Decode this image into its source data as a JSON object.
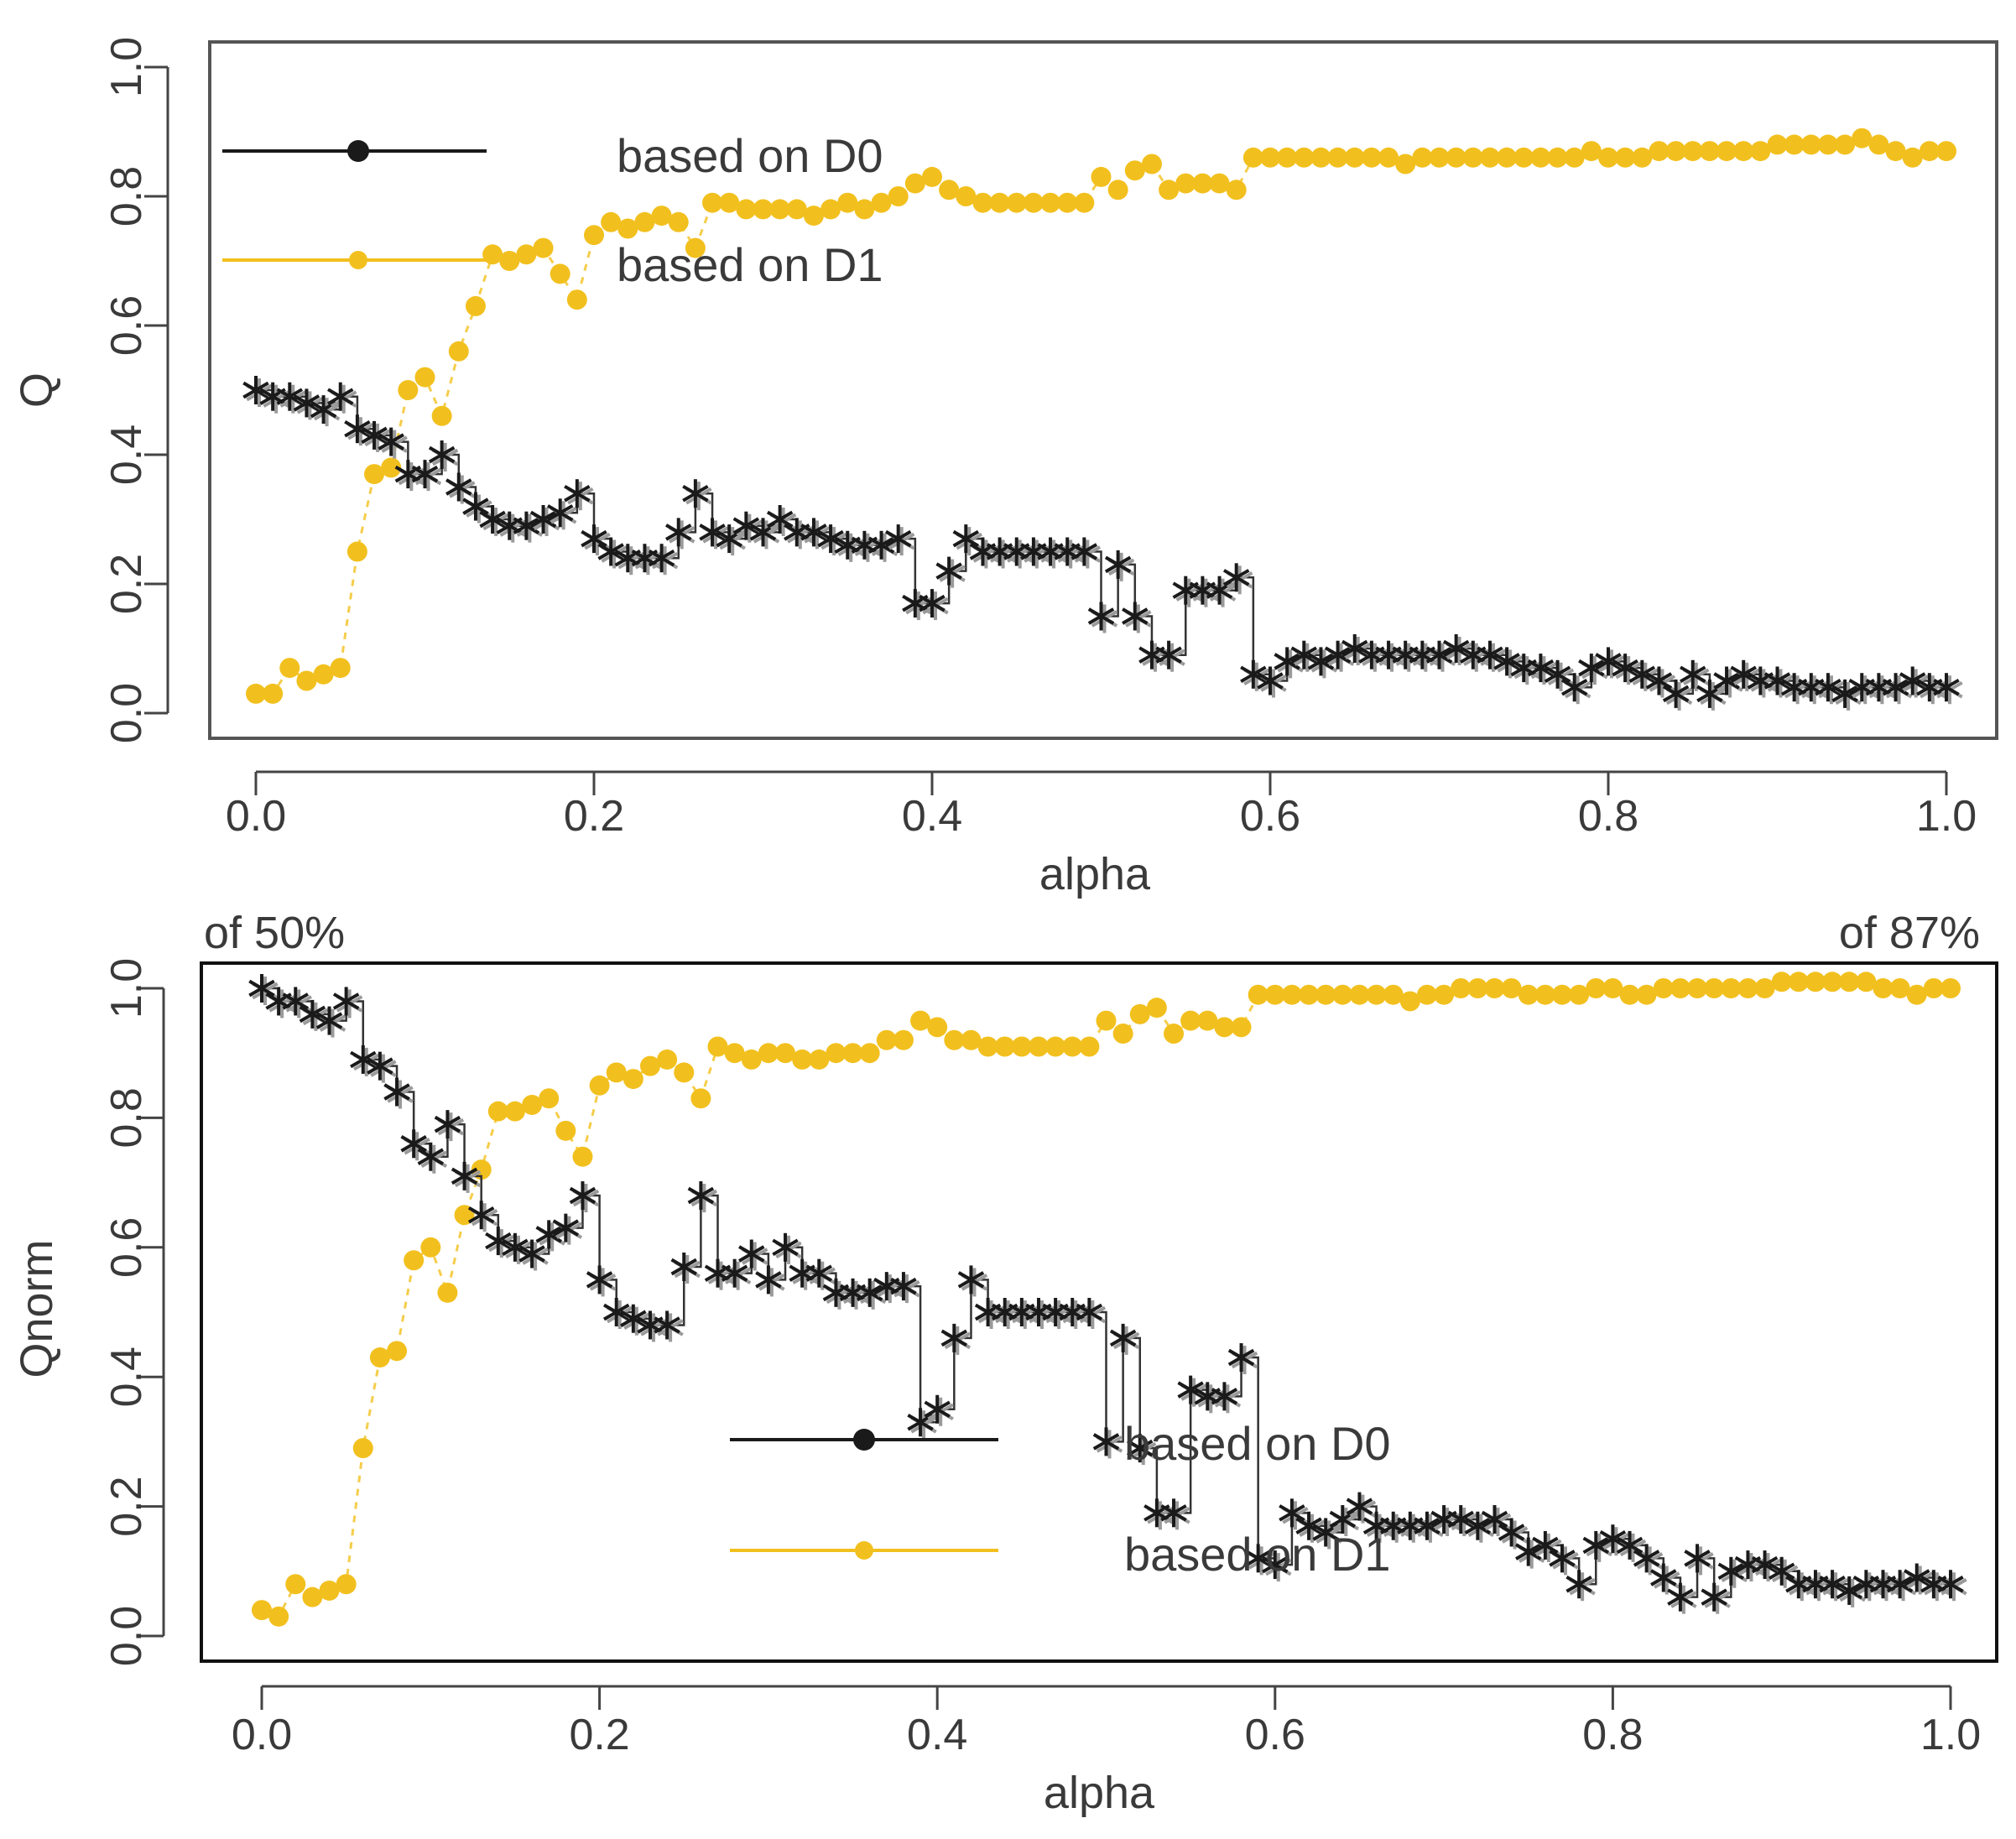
{
  "chart_data": [
    {
      "type": "scatter",
      "panel": "top",
      "xlabel": "alpha",
      "ylabel": "Q",
      "xlim": [
        0,
        1
      ],
      "ylim": [
        0,
        1
      ],
      "xticks": [
        "0.0",
        "0.2",
        "0.4",
        "0.6",
        "0.8",
        "1.0"
      ],
      "yticks": [
        "0.0",
        "0.2",
        "0.4",
        "0.6",
        "0.8",
        "1.0"
      ],
      "legend": {
        "placement": "top-left",
        "entries": [
          "based on D0",
          "based on D1"
        ]
      },
      "colors": {
        "D0": "#1a1a1a",
        "D1": "#f2c01e"
      },
      "series": [
        {
          "name": "based on D0",
          "marker": "asterisk",
          "x": [
            0.0,
            0.01,
            0.02,
            0.03,
            0.04,
            0.05,
            0.06,
            0.07,
            0.08,
            0.09,
            0.1,
            0.11,
            0.12,
            0.13,
            0.14,
            0.15,
            0.16,
            0.17,
            0.18,
            0.19,
            0.2,
            0.21,
            0.22,
            0.23,
            0.24,
            0.25,
            0.26,
            0.27,
            0.28,
            0.29,
            0.3,
            0.31,
            0.32,
            0.33,
            0.34,
            0.35,
            0.36,
            0.37,
            0.38,
            0.39,
            0.4,
            0.41,
            0.42,
            0.43,
            0.44,
            0.45,
            0.46,
            0.47,
            0.48,
            0.49,
            0.5,
            0.51,
            0.52,
            0.53,
            0.54,
            0.55,
            0.56,
            0.57,
            0.58,
            0.59,
            0.6,
            0.61,
            0.62,
            0.63,
            0.64,
            0.65,
            0.66,
            0.67,
            0.68,
            0.69,
            0.7,
            0.71,
            0.72,
            0.73,
            0.74,
            0.75,
            0.76,
            0.77,
            0.78,
            0.79,
            0.8,
            0.81,
            0.82,
            0.83,
            0.84,
            0.85,
            0.86,
            0.87,
            0.88,
            0.89,
            0.9,
            0.91,
            0.92,
            0.93,
            0.94,
            0.95,
            0.96,
            0.97,
            0.98,
            0.99,
            1.0
          ],
          "y": [
            0.5,
            0.49,
            0.49,
            0.48,
            0.47,
            0.49,
            0.44,
            0.43,
            0.42,
            0.37,
            0.37,
            0.4,
            0.35,
            0.32,
            0.3,
            0.29,
            0.29,
            0.3,
            0.31,
            0.34,
            0.27,
            0.25,
            0.24,
            0.24,
            0.24,
            0.28,
            0.34,
            0.28,
            0.27,
            0.29,
            0.28,
            0.3,
            0.28,
            0.28,
            0.27,
            0.26,
            0.26,
            0.26,
            0.27,
            0.17,
            0.17,
            0.22,
            0.27,
            0.25,
            0.25,
            0.25,
            0.25,
            0.25,
            0.25,
            0.25,
            0.15,
            0.23,
            0.15,
            0.09,
            0.09,
            0.19,
            0.19,
            0.19,
            0.21,
            0.06,
            0.05,
            0.08,
            0.09,
            0.08,
            0.09,
            0.1,
            0.09,
            0.09,
            0.09,
            0.09,
            0.09,
            0.1,
            0.09,
            0.09,
            0.08,
            0.07,
            0.07,
            0.06,
            0.04,
            0.07,
            0.08,
            0.07,
            0.06,
            0.05,
            0.03,
            0.06,
            0.03,
            0.05,
            0.06,
            0.05,
            0.05,
            0.04,
            0.04,
            0.04,
            0.03,
            0.04,
            0.04,
            0.04,
            0.05,
            0.04,
            0.04
          ]
        },
        {
          "name": "based on D1",
          "marker": "dot",
          "x": [
            0.0,
            0.01,
            0.02,
            0.03,
            0.04,
            0.05,
            0.06,
            0.07,
            0.08,
            0.09,
            0.1,
            0.11,
            0.12,
            0.13,
            0.14,
            0.15,
            0.16,
            0.17,
            0.18,
            0.19,
            0.2,
            0.21,
            0.22,
            0.23,
            0.24,
            0.25,
            0.26,
            0.27,
            0.28,
            0.29,
            0.3,
            0.31,
            0.32,
            0.33,
            0.34,
            0.35,
            0.36,
            0.37,
            0.38,
            0.39,
            0.4,
            0.41,
            0.42,
            0.43,
            0.44,
            0.45,
            0.46,
            0.47,
            0.48,
            0.49,
            0.5,
            0.51,
            0.52,
            0.53,
            0.54,
            0.55,
            0.56,
            0.57,
            0.58,
            0.59,
            0.6,
            0.61,
            0.62,
            0.63,
            0.64,
            0.65,
            0.66,
            0.67,
            0.68,
            0.69,
            0.7,
            0.71,
            0.72,
            0.73,
            0.74,
            0.75,
            0.76,
            0.77,
            0.78,
            0.79,
            0.8,
            0.81,
            0.82,
            0.83,
            0.84,
            0.85,
            0.86,
            0.87,
            0.88,
            0.89,
            0.9,
            0.91,
            0.92,
            0.93,
            0.94,
            0.95,
            0.96,
            0.97,
            0.98,
            0.99,
            1.0
          ],
          "y": [
            0.03,
            0.03,
            0.07,
            0.05,
            0.06,
            0.07,
            0.25,
            0.37,
            0.38,
            0.5,
            0.52,
            0.46,
            0.56,
            0.63,
            0.71,
            0.7,
            0.71,
            0.72,
            0.68,
            0.64,
            0.74,
            0.76,
            0.75,
            0.76,
            0.77,
            0.76,
            0.72,
            0.79,
            0.79,
            0.78,
            0.78,
            0.78,
            0.78,
            0.77,
            0.78,
            0.79,
            0.78,
            0.79,
            0.8,
            0.82,
            0.83,
            0.81,
            0.8,
            0.79,
            0.79,
            0.79,
            0.79,
            0.79,
            0.79,
            0.79,
            0.83,
            0.81,
            0.84,
            0.85,
            0.81,
            0.82,
            0.82,
            0.82,
            0.81,
            0.86,
            0.86,
            0.86,
            0.86,
            0.86,
            0.86,
            0.86,
            0.86,
            0.86,
            0.85,
            0.86,
            0.86,
            0.86,
            0.86,
            0.86,
            0.86,
            0.86,
            0.86,
            0.86,
            0.86,
            0.87,
            0.86,
            0.86,
            0.86,
            0.87,
            0.87,
            0.87,
            0.87,
            0.87,
            0.87,
            0.87,
            0.88,
            0.88,
            0.88,
            0.88,
            0.88,
            0.89,
            0.88,
            0.87,
            0.86,
            0.87,
            0.87
          ]
        }
      ]
    },
    {
      "type": "scatter",
      "panel": "bottom",
      "xlabel": "alpha",
      "ylabel": "Qnorm",
      "xlim": [
        0,
        1
      ],
      "ylim": [
        0,
        1
      ],
      "xticks": [
        "0.0",
        "0.2",
        "0.4",
        "0.6",
        "0.8",
        "1.0"
      ],
      "yticks": [
        "0.0",
        "0.2",
        "0.4",
        "0.6",
        "0.8",
        "1.0"
      ],
      "annotations": {
        "left": "of 50%",
        "right": "of 87%"
      },
      "legend": {
        "placement": "bottom-center",
        "entries": [
          "based on D0",
          "based on D1"
        ]
      },
      "colors": {
        "D0": "#1a1a1a",
        "D1": "#f2c01e"
      },
      "series": [
        {
          "name": "based on D0",
          "marker": "asterisk",
          "x": [
            0.0,
            0.01,
            0.02,
            0.03,
            0.04,
            0.05,
            0.06,
            0.07,
            0.08,
            0.09,
            0.1,
            0.11,
            0.12,
            0.13,
            0.14,
            0.15,
            0.16,
            0.17,
            0.18,
            0.19,
            0.2,
            0.21,
            0.22,
            0.23,
            0.24,
            0.25,
            0.26,
            0.27,
            0.28,
            0.29,
            0.3,
            0.31,
            0.32,
            0.33,
            0.34,
            0.35,
            0.36,
            0.37,
            0.38,
            0.39,
            0.4,
            0.41,
            0.42,
            0.43,
            0.44,
            0.45,
            0.46,
            0.47,
            0.48,
            0.49,
            0.5,
            0.51,
            0.52,
            0.53,
            0.54,
            0.55,
            0.56,
            0.57,
            0.58,
            0.59,
            0.6,
            0.61,
            0.62,
            0.63,
            0.64,
            0.65,
            0.66,
            0.67,
            0.68,
            0.69,
            0.7,
            0.71,
            0.72,
            0.73,
            0.74,
            0.75,
            0.76,
            0.77,
            0.78,
            0.79,
            0.8,
            0.81,
            0.82,
            0.83,
            0.84,
            0.85,
            0.86,
            0.87,
            0.88,
            0.89,
            0.9,
            0.91,
            0.92,
            0.93,
            0.94,
            0.95,
            0.96,
            0.97,
            0.98,
            0.99,
            1.0
          ],
          "y": [
            1.0,
            0.98,
            0.98,
            0.96,
            0.95,
            0.98,
            0.89,
            0.88,
            0.84,
            0.76,
            0.74,
            0.79,
            0.71,
            0.65,
            0.61,
            0.6,
            0.59,
            0.62,
            0.63,
            0.68,
            0.55,
            0.5,
            0.49,
            0.48,
            0.48,
            0.57,
            0.68,
            0.56,
            0.56,
            0.59,
            0.55,
            0.6,
            0.56,
            0.56,
            0.53,
            0.53,
            0.53,
            0.54,
            0.54,
            0.33,
            0.35,
            0.46,
            0.55,
            0.5,
            0.5,
            0.5,
            0.5,
            0.5,
            0.5,
            0.5,
            0.3,
            0.46,
            0.29,
            0.19,
            0.19,
            0.38,
            0.37,
            0.37,
            0.43,
            0.12,
            0.11,
            0.19,
            0.17,
            0.16,
            0.18,
            0.2,
            0.17,
            0.17,
            0.17,
            0.17,
            0.18,
            0.18,
            0.17,
            0.18,
            0.16,
            0.13,
            0.14,
            0.12,
            0.08,
            0.14,
            0.15,
            0.14,
            0.12,
            0.09,
            0.06,
            0.12,
            0.06,
            0.1,
            0.11,
            0.11,
            0.1,
            0.08,
            0.08,
            0.08,
            0.07,
            0.08,
            0.08,
            0.08,
            0.09,
            0.08,
            0.08
          ]
        },
        {
          "name": "based on D1",
          "marker": "dot",
          "x": [
            0.0,
            0.01,
            0.02,
            0.03,
            0.04,
            0.05,
            0.06,
            0.07,
            0.08,
            0.09,
            0.1,
            0.11,
            0.12,
            0.13,
            0.14,
            0.15,
            0.16,
            0.17,
            0.18,
            0.19,
            0.2,
            0.21,
            0.22,
            0.23,
            0.24,
            0.25,
            0.26,
            0.27,
            0.28,
            0.29,
            0.3,
            0.31,
            0.32,
            0.33,
            0.34,
            0.35,
            0.36,
            0.37,
            0.38,
            0.39,
            0.4,
            0.41,
            0.42,
            0.43,
            0.44,
            0.45,
            0.46,
            0.47,
            0.48,
            0.49,
            0.5,
            0.51,
            0.52,
            0.53,
            0.54,
            0.55,
            0.56,
            0.57,
            0.58,
            0.59,
            0.6,
            0.61,
            0.62,
            0.63,
            0.64,
            0.65,
            0.66,
            0.67,
            0.68,
            0.69,
            0.7,
            0.71,
            0.72,
            0.73,
            0.74,
            0.75,
            0.76,
            0.77,
            0.78,
            0.79,
            0.8,
            0.81,
            0.82,
            0.83,
            0.84,
            0.85,
            0.86,
            0.87,
            0.88,
            0.89,
            0.9,
            0.91,
            0.92,
            0.93,
            0.94,
            0.95,
            0.96,
            0.97,
            0.98,
            0.99,
            1.0
          ],
          "y": [
            0.04,
            0.03,
            0.08,
            0.06,
            0.07,
            0.08,
            0.29,
            0.43,
            0.44,
            0.58,
            0.6,
            0.53,
            0.65,
            0.72,
            0.81,
            0.81,
            0.82,
            0.83,
            0.78,
            0.74,
            0.85,
            0.87,
            0.86,
            0.88,
            0.89,
            0.87,
            0.83,
            0.91,
            0.9,
            0.89,
            0.9,
            0.9,
            0.89,
            0.89,
            0.9,
            0.9,
            0.9,
            0.92,
            0.92,
            0.95,
            0.94,
            0.92,
            0.92,
            0.91,
            0.91,
            0.91,
            0.91,
            0.91,
            0.91,
            0.91,
            0.95,
            0.93,
            0.96,
            0.97,
            0.93,
            0.95,
            0.95,
            0.94,
            0.94,
            0.99,
            0.99,
            0.99,
            0.99,
            0.99,
            0.99,
            0.99,
            0.99,
            0.99,
            0.98,
            0.99,
            0.99,
            1.0,
            1.0,
            1.0,
            1.0,
            0.99,
            0.99,
            0.99,
            0.99,
            1.0,
            1.0,
            0.99,
            0.99,
            1.0,
            1.0,
            1.0,
            1.0,
            1.0,
            1.0,
            1.0,
            1.01,
            1.01,
            1.01,
            1.01,
            1.01,
            1.01,
            1.0,
            1.0,
            0.99,
            1.0,
            1.0
          ]
        }
      ]
    }
  ]
}
